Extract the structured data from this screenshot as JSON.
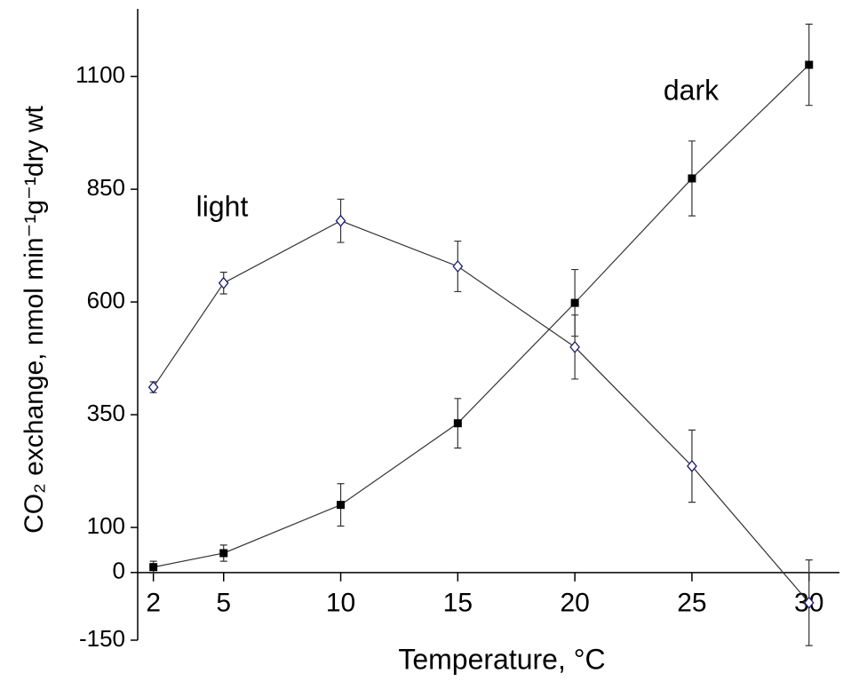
{
  "chart_data": {
    "type": "line",
    "x_label": "Temperature, °C",
    "y_label": "CO₂ exchange, nmol min⁻¹g⁻¹dry wt",
    "x": [
      2,
      5,
      10,
      15,
      20,
      25,
      30
    ],
    "series": [
      {
        "name": "light",
        "color": "#1a1a6e",
        "marker": "diamond",
        "values": [
          411,
          642,
          780,
          679,
          500,
          236,
          -67
        ],
        "errors": [
          12,
          24,
          48,
          56,
          71,
          80,
          95
        ]
      },
      {
        "name": "dark",
        "color": "#000000",
        "marker": "square",
        "values": [
          12,
          43,
          150,
          331,
          598,
          874,
          1126
        ],
        "errors": [
          13,
          18,
          47,
          55,
          74,
          83,
          90
        ]
      }
    ],
    "xlim": [
      1.33,
      31.3
    ],
    "xticks": [
      2,
      5,
      10,
      15,
      20,
      25,
      30
    ],
    "ylim": [
      -150,
      1250
    ],
    "yticks": [
      -150,
      0,
      100,
      350,
      600,
      850,
      1100
    ],
    "grid": false
  }
}
